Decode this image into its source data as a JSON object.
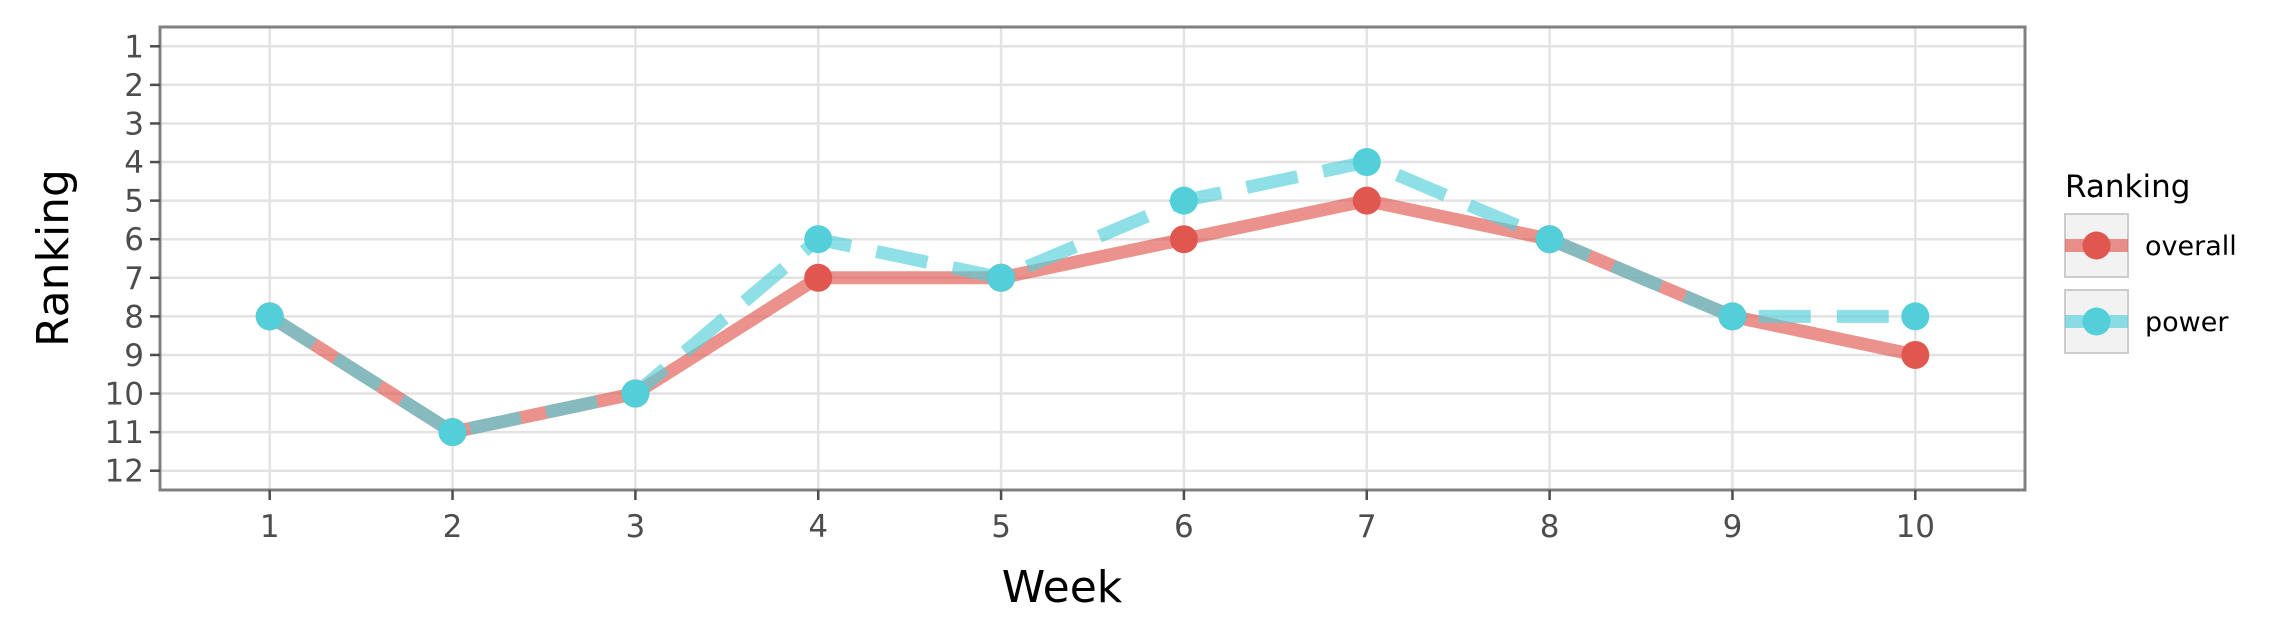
{
  "chart_data": {
    "type": "line",
    "title": "",
    "xlabel": "Week",
    "ylabel": "Ranking",
    "x": [
      1,
      2,
      3,
      4,
      5,
      6,
      7,
      8,
      9,
      10
    ],
    "x_ticks": [
      "1",
      "2",
      "3",
      "4",
      "5",
      "6",
      "7",
      "8",
      "9",
      "10"
    ],
    "y_ticks": [
      "1",
      "2",
      "3",
      "4",
      "5",
      "6",
      "7",
      "8",
      "9",
      "10",
      "11",
      "12"
    ],
    "xlim": [
      0.4,
      10.6
    ],
    "ylim": [
      12.5,
      0.5
    ],
    "y_reversed": true,
    "grid": true,
    "legend": {
      "title": "Ranking",
      "placement": "right"
    },
    "series": [
      {
        "name": "overall",
        "values": [
          8,
          11,
          10,
          7,
          7,
          6,
          5,
          6,
          8,
          9
        ],
        "color": "#e0574f",
        "line_style": "solid"
      },
      {
        "name": "power",
        "values": [
          8,
          11,
          10,
          6,
          7,
          5,
          4,
          6,
          8,
          8
        ],
        "color": "#52cfd9",
        "line_style": "dashed"
      }
    ]
  }
}
